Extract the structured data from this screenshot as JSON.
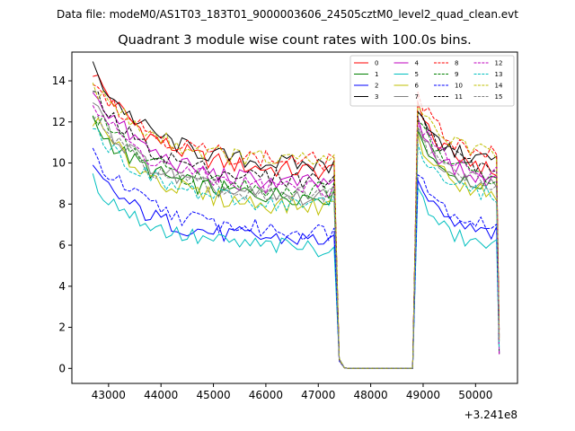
{
  "suptitle": "Data file: modeM0/AS1T03_183T01_9000003606_24505cztM0_level2_quad_clean.evt",
  "chart_data": {
    "type": "line",
    "title": "Quadrant 3 module wise count rates with 100.0s bins.",
    "xlabel": "",
    "ylabel": "",
    "x_offset_label": "+3.241e8",
    "xlim": [
      42300,
      50800
    ],
    "ylim": [
      -0.73,
      15.4
    ],
    "xticks": [
      43000,
      44000,
      45000,
      46000,
      47000,
      48000,
      49000,
      50000
    ],
    "xtick_labels": [
      "43000",
      "44000",
      "45000",
      "46000",
      "47000",
      "48000",
      "49000",
      "50000"
    ],
    "yticks": [
      0,
      2,
      4,
      6,
      8,
      10,
      12,
      14
    ],
    "ytick_labels": [
      "0",
      "2",
      "4",
      "6",
      "8",
      "10",
      "12",
      "14"
    ],
    "legend_position": "upper right",
    "legend_columns": 4,
    "segments": [
      {
        "start": 42700,
        "end": 47300,
        "step": 100
      },
      {
        "start": 47400,
        "end": 48800,
        "step": 100
      },
      {
        "start": 48900,
        "end": 50400,
        "step": 100
      }
    ],
    "series": [
      {
        "name": "0",
        "color": "#ff0000",
        "dash": "solid",
        "a": [
          14.5,
          9.5
        ],
        "b": [
          12.8,
          9.5
        ]
      },
      {
        "name": "1",
        "color": "#008000",
        "dash": "solid",
        "a": [
          12.0,
          8.3
        ],
        "b": [
          11.5,
          8.8
        ]
      },
      {
        "name": "2",
        "color": "#0000ff",
        "dash": "solid",
        "a": [
          9.6,
          6.2
        ],
        "b": [
          9.0,
          6.4
        ]
      },
      {
        "name": "3",
        "color": "#000000",
        "dash": "solid",
        "a": [
          14.6,
          9.8
        ],
        "b": [
          12.3,
          10.0
        ]
      },
      {
        "name": "4",
        "color": "#bf00bf",
        "dash": "solid",
        "a": [
          13.6,
          8.9
        ],
        "b": [
          12.0,
          9.0
        ]
      },
      {
        "name": "5",
        "color": "#00bfbf",
        "dash": "solid",
        "a": [
          9.1,
          5.8
        ],
        "b": [
          8.6,
          5.8
        ]
      },
      {
        "name": "6",
        "color": "#bfbf00",
        "dash": "solid",
        "a": [
          12.2,
          7.8
        ],
        "b": [
          11.2,
          8.4
        ]
      },
      {
        "name": "7",
        "color": "#808080",
        "dash": "solid",
        "a": [
          12.8,
          8.2
        ],
        "b": [
          11.8,
          8.8
        ]
      },
      {
        "name": "8",
        "color": "#ff0000",
        "dash": "dashed",
        "a": [
          14.2,
          10.0
        ],
        "b": [
          13.3,
          10.3
        ]
      },
      {
        "name": "9",
        "color": "#008000",
        "dash": "dashed",
        "a": [
          12.6,
          8.6
        ],
        "b": [
          12.0,
          9.2
        ]
      },
      {
        "name": "10",
        "color": "#0000ff",
        "dash": "dashed",
        "a": [
          10.4,
          6.6
        ],
        "b": [
          9.8,
          6.8
        ]
      },
      {
        "name": "11",
        "color": "#000000",
        "dash": "dashed",
        "a": [
          13.4,
          9.1
        ],
        "b": [
          12.6,
          9.6
        ]
      },
      {
        "name": "12",
        "color": "#bf00bf",
        "dash": "dashed",
        "a": [
          12.9,
          8.7
        ],
        "b": [
          12.2,
          9.3
        ]
      },
      {
        "name": "13",
        "color": "#00bfbf",
        "dash": "dashed",
        "a": [
          11.8,
          7.9
        ],
        "b": [
          11.0,
          8.3
        ]
      },
      {
        "name": "14",
        "color": "#bfbf00",
        "dash": "dashed",
        "a": [
          13.9,
          10.0
        ],
        "b": [
          13.0,
          10.3
        ]
      },
      {
        "name": "15",
        "color": "#808080",
        "dash": "dashed",
        "a": [
          12.3,
          8.3
        ],
        "b": [
          11.6,
          8.9
        ]
      }
    ]
  }
}
